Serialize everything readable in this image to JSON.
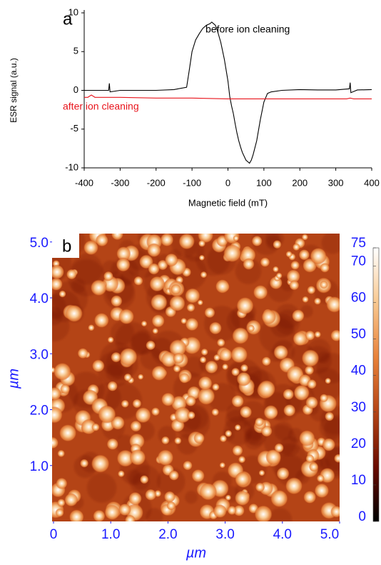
{
  "chart_data": [
    {
      "type": "line",
      "panel_label": "a",
      "xlabel": "Magnetic field (mT)",
      "ylabel": "ESR signal (a.u.)",
      "xlim": [
        -400,
        400
      ],
      "xticks": [
        -400,
        -300,
        -200,
        -100,
        0,
        100,
        200,
        300,
        400
      ],
      "ylim": [
        -10,
        10
      ],
      "yticks": [
        -10,
        -5,
        0,
        5,
        10
      ],
      "series": [
        {
          "name": "before ion cleaning",
          "color": "#000000",
          "x": [
            -400,
            -350,
            -332,
            -330,
            -328,
            -300,
            -250,
            -200,
            -150,
            -115,
            -108,
            -100,
            -90,
            -80,
            -70,
            -60,
            -50,
            -45,
            -40,
            -35,
            -30,
            -20,
            -10,
            0,
            5,
            10,
            15,
            20,
            25,
            30,
            35,
            40,
            50,
            60,
            65,
            70,
            80,
            90,
            100,
            110,
            120,
            150,
            200,
            250,
            300,
            338,
            340,
            342,
            360,
            400
          ],
          "values": [
            0,
            0,
            0,
            0.9,
            -0.2,
            0,
            0,
            0,
            0.1,
            0.4,
            2.5,
            5,
            6.5,
            7.3,
            8,
            8.4,
            8.6,
            8.8,
            8.6,
            8.4,
            7.8,
            6.2,
            4,
            1.2,
            -0.8,
            -2,
            -3,
            -4.3,
            -5.5,
            -6.5,
            -7.3,
            -8,
            -9,
            -9.4,
            -9,
            -8.3,
            -6.5,
            -3.8,
            -1.5,
            -0.4,
            -0.2,
            0,
            0.1,
            0.05,
            0.05,
            0.2,
            1,
            -0.3,
            0.05,
            0.1
          ]
        },
        {
          "name": "after ion cleaning",
          "color": "#e8141c",
          "x": [
            -400,
            -390,
            -380,
            -370,
            -300,
            -200,
            -100,
            0,
            100,
            200,
            300,
            330,
            340,
            350,
            400
          ],
          "values": [
            -0.9,
            -0.9,
            -0.6,
            -0.9,
            -0.9,
            -1,
            -1,
            -1.1,
            -1.1,
            -1.1,
            -1.1,
            -1.1,
            -1.0,
            -1.1,
            -1.1
          ]
        }
      ]
    },
    {
      "type": "heatmap",
      "panel_label": "b",
      "xlabel": "µm",
      "ylabel": "µm",
      "tick_color": "#1a1aff",
      "xlim": [
        0,
        5
      ],
      "xticks": [
        0,
        {
          "value": 1,
          "label": "1.0"
        },
        {
          "value": 2,
          "label": "2.0"
        },
        {
          "value": 3,
          "label": "3.0"
        },
        {
          "value": 4,
          "label": "4.0"
        },
        {
          "value": 5,
          "label": "5.0"
        }
      ],
      "ylim": [
        0,
        5.15
      ],
      "yticks": [
        {
          "value": 1,
          "label": "1.0"
        },
        {
          "value": 2,
          "label": "2.0"
        },
        {
          "value": 3,
          "label": "3.0"
        },
        {
          "value": 4,
          "label": "4.0"
        },
        {
          "value": 5,
          "label": "5.0"
        }
      ],
      "colormap": [
        "#000000",
        "#6a0c00",
        "#b44416",
        "#e8823a",
        "#f8c890",
        "#ffffff"
      ],
      "colorbar": {
        "lim": [
          0,
          75
        ],
        "ticks": [
          0,
          10,
          20,
          30,
          40,
          50,
          60,
          70,
          75
        ]
      }
    }
  ]
}
